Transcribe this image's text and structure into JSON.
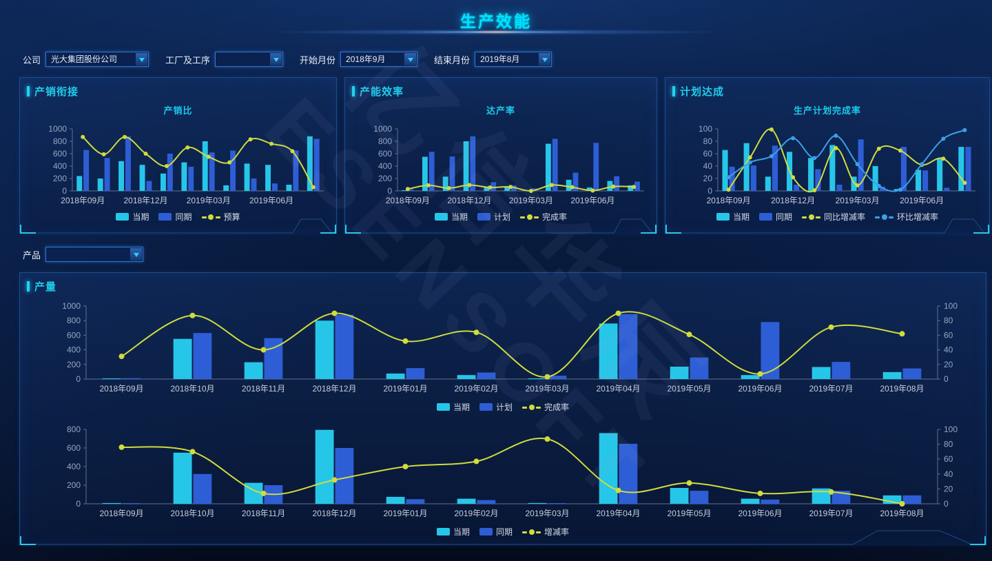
{
  "page": {
    "title": "生产效能"
  },
  "filters": {
    "company": {
      "label": "公司",
      "value": "光大集团股份公司"
    },
    "factory": {
      "label": "工厂及工序",
      "value": ""
    },
    "start_month": {
      "label": "开始月份",
      "value": "2018年9月"
    },
    "end_month": {
      "label": "结束月份",
      "value": "2019年8月"
    },
    "product": {
      "label": "产品",
      "value": ""
    }
  },
  "panels": [
    {
      "header": "产销衔接",
      "chart_title": "产销比"
    },
    {
      "header": "产能效率",
      "chart_title": "达产率"
    },
    {
      "header": "计划达成",
      "chart_title": "生产计划完成率"
    },
    {
      "header": "产量"
    }
  ],
  "watermark": {
    "line1": "亿信华辰",
    "line2": "ESENSOFT"
  },
  "colors": {
    "bar_cyan": "#26c6e9",
    "bar_blue": "#2e5ed6",
    "line_yellow": "#d0dc3c",
    "line_blue": "#3d9fe8",
    "accent_cyan": "#22d2f0"
  },
  "chart_data": [
    {
      "type": "bar+line",
      "title": "产销比",
      "categories": [
        "2018年09月",
        "2018年10月",
        "2018年11月",
        "2018年12月",
        "2019年01月",
        "2019年02月",
        "2019年03月",
        "2019年04月",
        "2019年05月",
        "2019年06月",
        "2019年07月",
        "2019年08月"
      ],
      "x_label_step": 3,
      "ylim_left": [
        0,
        1000
      ],
      "left_ticks": [
        0,
        200,
        400,
        600,
        800,
        1000
      ],
      "bars": [
        {
          "name": "当期",
          "color": "#26c6e9",
          "values": [
            240,
            200,
            480,
            420,
            280,
            460,
            800,
            90,
            440,
            420,
            100,
            880
          ]
        },
        {
          "name": "同期",
          "color": "#2e5ed6",
          "values": [
            660,
            530,
            880,
            160,
            600,
            390,
            620,
            650,
            200,
            120,
            650,
            840
          ]
        }
      ],
      "lines": [
        {
          "name": "预算",
          "color": "#d0dc3c",
          "axis": "left",
          "values": [
            870,
            590,
            870,
            600,
            400,
            700,
            550,
            460,
            830,
            760,
            640,
            60
          ]
        }
      ]
    },
    {
      "type": "bar+line",
      "title": "达产率",
      "categories": [
        "2018年09月",
        "2018年10月",
        "2018年11月",
        "2018年12月",
        "2019年01月",
        "2019年02月",
        "2019年03月",
        "2019年04月",
        "2019年05月",
        "2019年06月",
        "2019年07月",
        "2019年08月"
      ],
      "x_label_step": 3,
      "ylim_left": [
        0,
        1000
      ],
      "left_ticks": [
        0,
        200,
        400,
        600,
        800,
        1000
      ],
      "bars": [
        {
          "name": "当期",
          "color": "#26c6e9",
          "values": [
            10,
            550,
            230,
            800,
            70,
            60,
            10,
            760,
            180,
            55,
            160,
            90
          ]
        },
        {
          "name": "计划",
          "color": "#2e5ed6",
          "values": [
            25,
            630,
            555,
            880,
            140,
            90,
            40,
            840,
            295,
            775,
            235,
            150
          ]
        }
      ],
      "lines": [
        {
          "name": "完成率",
          "color": "#d0dc3c",
          "axis": "left",
          "values": [
            30,
            90,
            45,
            95,
            55,
            65,
            0,
            95,
            60,
            5,
            70,
            65
          ]
        }
      ]
    },
    {
      "type": "bar+line",
      "title": "生产计划完成率",
      "categories": [
        "2018年09月",
        "2018年10月",
        "2018年11月",
        "2018年12月",
        "2019年01月",
        "2019年02月",
        "2019年03月",
        "2019年04月",
        "2019年05月",
        "2019年06月",
        "2019年07月",
        "2019年08月"
      ],
      "x_label_step": 3,
      "ylim_left": [
        0,
        100
      ],
      "left_ticks": [
        0,
        20,
        40,
        60,
        80,
        100
      ],
      "bars": [
        {
          "name": "当期",
          "color": "#26c6e9",
          "values": [
            66,
            77,
            23,
            63,
            53,
            74,
            23,
            40,
            3,
            34,
            53,
            71
          ]
        },
        {
          "name": "同期",
          "color": "#2e5ed6",
          "values": [
            39,
            41,
            73,
            10,
            35,
            10,
            83,
            7,
            71,
            33,
            5,
            71
          ]
        }
      ],
      "lines": [
        {
          "name": "同比增减率",
          "color": "#d0dc3c",
          "axis": "left",
          "values": [
            2,
            54,
            99,
            22,
            1,
            69,
            9,
            68,
            65,
            42,
            52,
            13
          ]
        },
        {
          "name": "环比增减率",
          "color": "#3d9fe8",
          "axis": "left",
          "values": [
            22,
            46,
            56,
            85,
            53,
            89,
            43,
            8,
            2,
            43,
            84,
            98
          ]
        }
      ]
    },
    {
      "type": "bar+line",
      "title": "产量-当期计划完成率",
      "categories": [
        "2018年09月",
        "2018年10月",
        "2018年11月",
        "2018年12月",
        "2019年01月",
        "2019年02月",
        "2019年03月",
        "2019年04月",
        "2019年05月",
        "2019年06月",
        "2019年07月",
        "2019年08月"
      ],
      "x_label_step": 1,
      "ylim_left": [
        0,
        1000
      ],
      "left_ticks": [
        0,
        200,
        400,
        600,
        800,
        1000
      ],
      "ylim_right": [
        0,
        100
      ],
      "right_ticks": [
        0,
        20,
        40,
        60,
        80,
        100
      ],
      "bars": [
        {
          "name": "当期",
          "color": "#26c6e9",
          "values": [
            8,
            550,
            230,
            800,
            75,
            55,
            8,
            760,
            170,
            55,
            165,
            95
          ]
        },
        {
          "name": "计划",
          "color": "#2e5ed6",
          "values": [
            12,
            630,
            560,
            880,
            150,
            90,
            45,
            890,
            295,
            780,
            235,
            145
          ]
        }
      ],
      "lines": [
        {
          "name": "完成率",
          "color": "#d0dc3c",
          "axis": "right",
          "values": [
            31,
            87,
            40,
            90,
            52,
            64,
            3,
            90,
            61,
            7,
            71,
            62
          ]
        }
      ]
    },
    {
      "type": "bar+line",
      "title": "产量-同期增减率",
      "categories": [
        "2018年09月",
        "2018年10月",
        "2018年11月",
        "2018年12月",
        "2019年01月",
        "2019年02月",
        "2019年03月",
        "2019年04月",
        "2019年05月",
        "2019年06月",
        "2019年07月",
        "2019年08月"
      ],
      "x_label_step": 1,
      "ylim_left": [
        0,
        800
      ],
      "left_ticks": [
        0,
        200,
        400,
        600,
        800
      ],
      "ylim_right": [
        0,
        100
      ],
      "right_ticks": [
        0,
        20,
        40,
        60,
        80,
        100
      ],
      "bars": [
        {
          "name": "当期",
          "color": "#26c6e9",
          "values": [
            8,
            550,
            225,
            795,
            75,
            55,
            8,
            760,
            170,
            55,
            165,
            90
          ]
        },
        {
          "name": "同期",
          "color": "#2e5ed6",
          "values": [
            3,
            320,
            200,
            600,
            50,
            40,
            5,
            645,
            140,
            45,
            140,
            90
          ]
        }
      ],
      "lines": [
        {
          "name": "增减率",
          "color": "#d0dc3c",
          "axis": "right",
          "values": [
            76,
            70,
            14,
            32,
            50,
            57,
            87,
            18,
            28,
            14,
            16,
            0
          ]
        }
      ]
    }
  ]
}
